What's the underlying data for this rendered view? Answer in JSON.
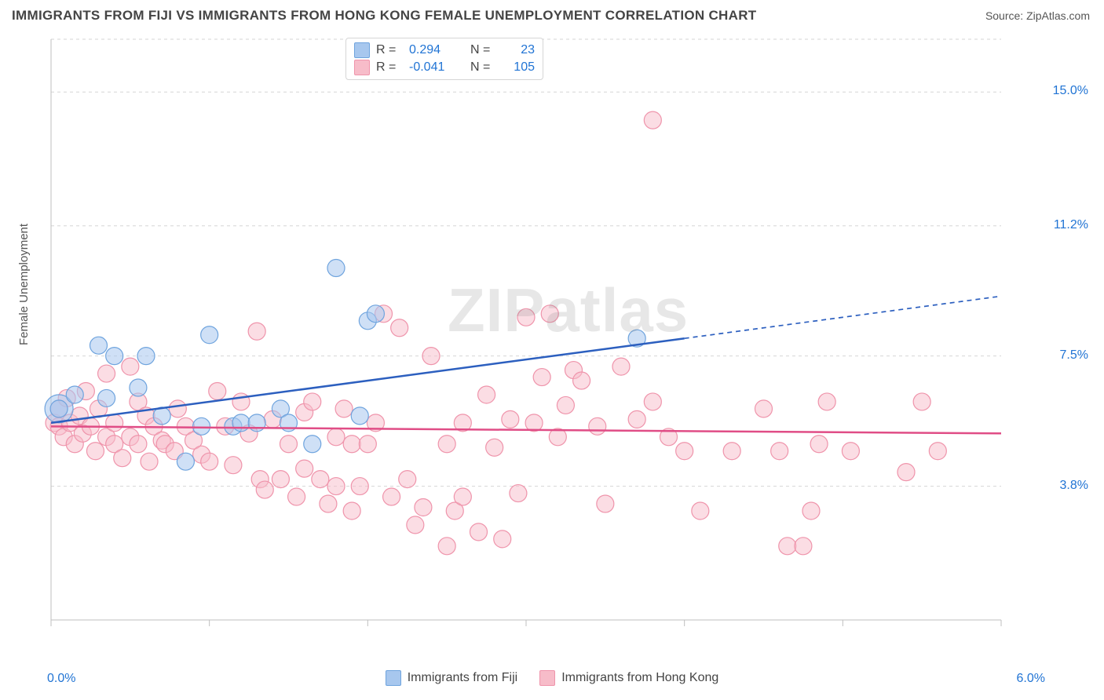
{
  "title": "IMMIGRANTS FROM FIJI VS IMMIGRANTS FROM HONG KONG FEMALE UNEMPLOYMENT CORRELATION CHART",
  "source_label": "Source:",
  "source_name": "ZipAtlas.com",
  "watermark": "ZIPatlas",
  "y_axis_label": "Female Unemployment",
  "chart": {
    "type": "scatter",
    "background_color": "#ffffff",
    "grid_color": "#d6d6d6",
    "grid_dash": "4 4",
    "tick_color": "#cccccc",
    "x_domain": [
      0.0,
      6.0
    ],
    "y_domain": [
      0.0,
      16.5
    ],
    "x_tick_label_min": "0.0%",
    "x_tick_label_max": "6.0%",
    "x_ticks": [
      0,
      1,
      2,
      3,
      4,
      5,
      6
    ],
    "y_ticks": [
      {
        "v": 3.8,
        "label": "3.8%"
      },
      {
        "v": 7.5,
        "label": "7.5%"
      },
      {
        "v": 11.2,
        "label": "11.2%"
      },
      {
        "v": 15.0,
        "label": "15.0%"
      }
    ],
    "series": [
      {
        "name": "Immigrants from Fiji",
        "legend_label": "Immigrants from Fiji",
        "r_value": "0.294",
        "n_value": "23",
        "fill": "#a7c7ee",
        "fill_opacity": 0.55,
        "stroke": "#6fa4de",
        "marker_r": 11,
        "line_color": "#2c5fbf",
        "line_width": 2.5,
        "trend_solid": {
          "x1": 0.0,
          "y1": 5.6,
          "x2": 4.0,
          "y2": 8.0
        },
        "trend_dash": {
          "x1": 4.0,
          "y1": 8.0,
          "x2": 6.0,
          "y2": 9.2
        },
        "points": [
          {
            "x": 0.05,
            "y": 6.0,
            "r": 18
          },
          {
            "x": 0.05,
            "y": 6.0
          },
          {
            "x": 0.15,
            "y": 6.4
          },
          {
            "x": 0.3,
            "y": 7.8
          },
          {
            "x": 0.35,
            "y": 6.3
          },
          {
            "x": 0.4,
            "y": 7.5
          },
          {
            "x": 0.55,
            "y": 6.6
          },
          {
            "x": 0.6,
            "y": 7.5
          },
          {
            "x": 0.7,
            "y": 5.8
          },
          {
            "x": 0.85,
            "y": 4.5
          },
          {
            "x": 0.95,
            "y": 5.5
          },
          {
            "x": 1.0,
            "y": 8.1
          },
          {
            "x": 1.15,
            "y": 5.5
          },
          {
            "x": 1.2,
            "y": 5.6
          },
          {
            "x": 1.3,
            "y": 5.6
          },
          {
            "x": 1.45,
            "y": 6.0
          },
          {
            "x": 1.5,
            "y": 5.6
          },
          {
            "x": 1.65,
            "y": 5.0
          },
          {
            "x": 1.8,
            "y": 10.0
          },
          {
            "x": 1.95,
            "y": 5.8
          },
          {
            "x": 2.0,
            "y": 8.5
          },
          {
            "x": 2.05,
            "y": 8.7
          },
          {
            "x": 3.7,
            "y": 8.0
          }
        ]
      },
      {
        "name": "Immigrants from Hong Kong",
        "legend_label": "Immigrants from Hong Kong",
        "r_value": "-0.041",
        "n_value": "105",
        "fill": "#f7bcc9",
        "fill_opacity": 0.5,
        "stroke": "#ef94ab",
        "marker_r": 11,
        "line_color": "#e04d86",
        "line_width": 2.5,
        "trend_solid": {
          "x1": 0.0,
          "y1": 5.5,
          "x2": 6.0,
          "y2": 5.3
        },
        "trend_dash": null,
        "points": [
          {
            "x": 0.02,
            "y": 5.6
          },
          {
            "x": 0.05,
            "y": 6.0
          },
          {
            "x": 0.05,
            "y": 5.5
          },
          {
            "x": 0.08,
            "y": 5.2
          },
          {
            "x": 0.1,
            "y": 6.3
          },
          {
            "x": 0.12,
            "y": 5.6
          },
          {
            "x": 0.15,
            "y": 5.0
          },
          {
            "x": 0.18,
            "y": 5.8
          },
          {
            "x": 0.2,
            "y": 5.3
          },
          {
            "x": 0.22,
            "y": 6.5
          },
          {
            "x": 0.25,
            "y": 5.5
          },
          {
            "x": 0.28,
            "y": 4.8
          },
          {
            "x": 0.3,
            "y": 6.0
          },
          {
            "x": 0.35,
            "y": 5.2
          },
          {
            "x": 0.35,
            "y": 7.0
          },
          {
            "x": 0.4,
            "y": 5.0
          },
          {
            "x": 0.4,
            "y": 5.6
          },
          {
            "x": 0.45,
            "y": 4.6
          },
          {
            "x": 0.5,
            "y": 7.2
          },
          {
            "x": 0.5,
            "y": 5.2
          },
          {
            "x": 0.55,
            "y": 5.0
          },
          {
            "x": 0.55,
            "y": 6.2
          },
          {
            "x": 0.6,
            "y": 5.8
          },
          {
            "x": 0.62,
            "y": 4.5
          },
          {
            "x": 0.65,
            "y": 5.5
          },
          {
            "x": 0.7,
            "y": 5.1
          },
          {
            "x": 0.72,
            "y": 5.0
          },
          {
            "x": 0.78,
            "y": 4.8
          },
          {
            "x": 0.8,
            "y": 6.0
          },
          {
            "x": 0.85,
            "y": 5.5
          },
          {
            "x": 0.9,
            "y": 5.1
          },
          {
            "x": 0.95,
            "y": 4.7
          },
          {
            "x": 1.0,
            "y": 4.5
          },
          {
            "x": 1.05,
            "y": 6.5
          },
          {
            "x": 1.1,
            "y": 5.5
          },
          {
            "x": 1.15,
            "y": 4.4
          },
          {
            "x": 1.2,
            "y": 6.2
          },
          {
            "x": 1.25,
            "y": 5.3
          },
          {
            "x": 1.3,
            "y": 8.2
          },
          {
            "x": 1.32,
            "y": 4.0
          },
          {
            "x": 1.35,
            "y": 3.7
          },
          {
            "x": 1.4,
            "y": 5.7
          },
          {
            "x": 1.45,
            "y": 4.0
          },
          {
            "x": 1.5,
            "y": 5.0
          },
          {
            "x": 1.55,
            "y": 3.5
          },
          {
            "x": 1.6,
            "y": 4.3
          },
          {
            "x": 1.6,
            "y": 5.9
          },
          {
            "x": 1.65,
            "y": 6.2
          },
          {
            "x": 1.7,
            "y": 4.0
          },
          {
            "x": 1.75,
            "y": 3.3
          },
          {
            "x": 1.8,
            "y": 5.2
          },
          {
            "x": 1.8,
            "y": 3.8
          },
          {
            "x": 1.85,
            "y": 6.0
          },
          {
            "x": 1.9,
            "y": 3.1
          },
          {
            "x": 1.9,
            "y": 5.0
          },
          {
            "x": 1.95,
            "y": 3.8
          },
          {
            "x": 2.0,
            "y": 5.0
          },
          {
            "x": 2.05,
            "y": 5.6
          },
          {
            "x": 2.1,
            "y": 8.7
          },
          {
            "x": 2.15,
            "y": 3.5
          },
          {
            "x": 2.2,
            "y": 8.3
          },
          {
            "x": 2.25,
            "y": 4.0
          },
          {
            "x": 2.3,
            "y": 2.7
          },
          {
            "x": 2.35,
            "y": 3.2
          },
          {
            "x": 2.4,
            "y": 7.5
          },
          {
            "x": 2.5,
            "y": 2.1
          },
          {
            "x": 2.5,
            "y": 5.0
          },
          {
            "x": 2.55,
            "y": 3.1
          },
          {
            "x": 2.6,
            "y": 5.6
          },
          {
            "x": 2.6,
            "y": 3.5
          },
          {
            "x": 2.7,
            "y": 2.5
          },
          {
            "x": 2.75,
            "y": 6.4
          },
          {
            "x": 2.8,
            "y": 4.9
          },
          {
            "x": 2.85,
            "y": 2.3
          },
          {
            "x": 2.9,
            "y": 5.7
          },
          {
            "x": 2.95,
            "y": 3.6
          },
          {
            "x": 3.0,
            "y": 8.6
          },
          {
            "x": 3.05,
            "y": 5.6
          },
          {
            "x": 3.1,
            "y": 6.9
          },
          {
            "x": 3.15,
            "y": 8.7
          },
          {
            "x": 3.2,
            "y": 5.2
          },
          {
            "x": 3.25,
            "y": 6.1
          },
          {
            "x": 3.3,
            "y": 7.1
          },
          {
            "x": 3.35,
            "y": 6.8
          },
          {
            "x": 3.45,
            "y": 5.5
          },
          {
            "x": 3.5,
            "y": 3.3
          },
          {
            "x": 3.6,
            "y": 7.2
          },
          {
            "x": 3.7,
            "y": 5.7
          },
          {
            "x": 3.8,
            "y": 6.2
          },
          {
            "x": 3.8,
            "y": 14.2
          },
          {
            "x": 3.9,
            "y": 5.2
          },
          {
            "x": 4.0,
            "y": 4.8
          },
          {
            "x": 4.1,
            "y": 3.1
          },
          {
            "x": 4.3,
            "y": 4.8
          },
          {
            "x": 4.5,
            "y": 6.0
          },
          {
            "x": 4.6,
            "y": 4.8
          },
          {
            "x": 4.65,
            "y": 2.1
          },
          {
            "x": 4.75,
            "y": 2.1
          },
          {
            "x": 4.8,
            "y": 3.1
          },
          {
            "x": 4.85,
            "y": 5.0
          },
          {
            "x": 4.9,
            "y": 6.2
          },
          {
            "x": 5.05,
            "y": 4.8
          },
          {
            "x": 5.4,
            "y": 4.2
          },
          {
            "x": 5.5,
            "y": 6.2
          },
          {
            "x": 5.6,
            "y": 4.8
          }
        ]
      }
    ]
  },
  "stats_labels": {
    "r": "R  =",
    "n": "N  ="
  }
}
